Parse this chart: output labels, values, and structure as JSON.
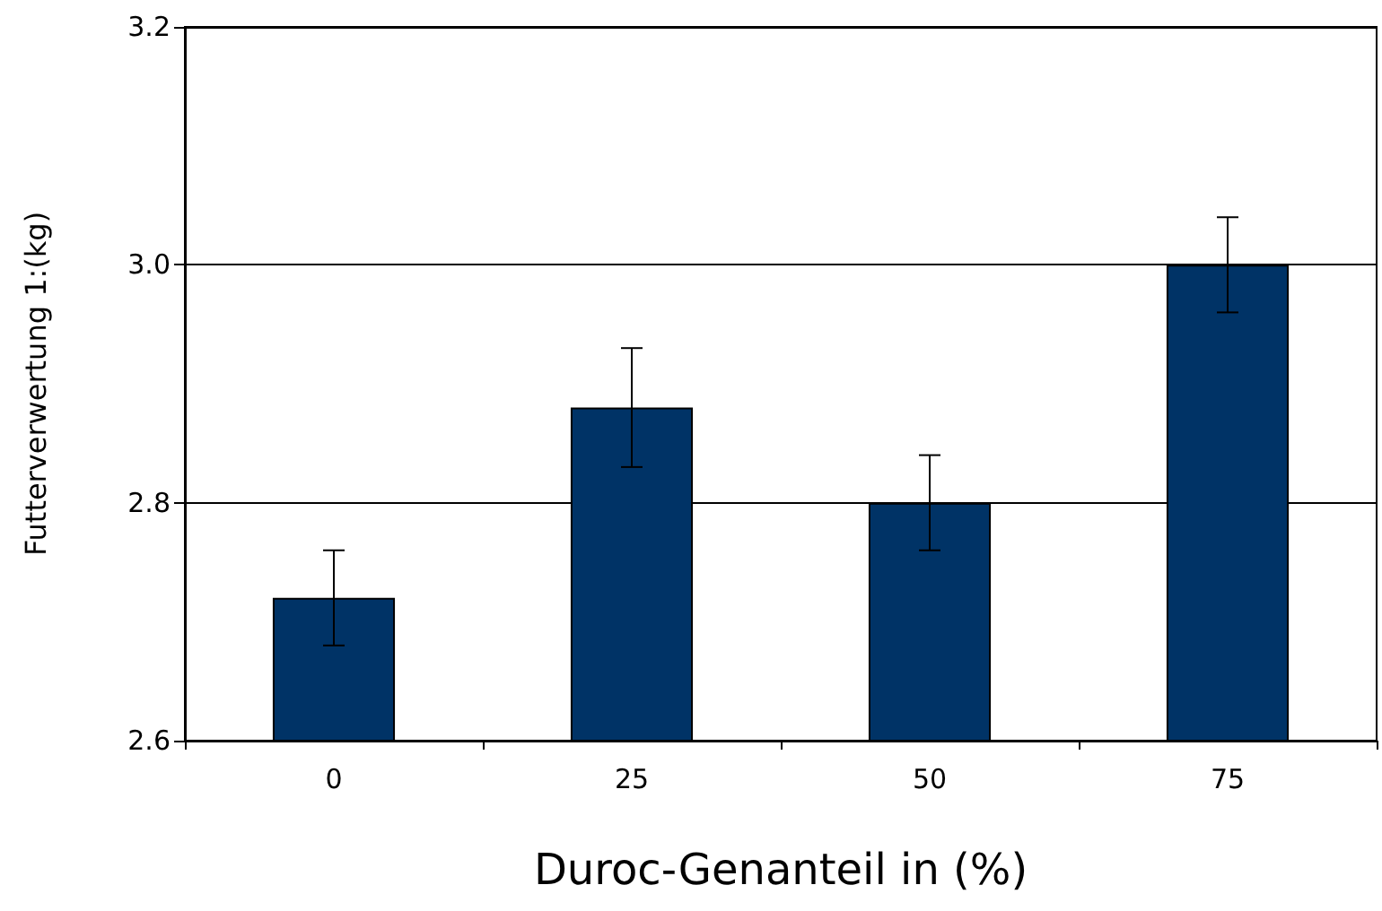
{
  "chart_data": {
    "type": "bar",
    "xlabel": "Duroc-Genanteil in (%)",
    "ylabel": "Futterverwertung 1:(kg)",
    "categories": [
      "0",
      "25",
      "50",
      "75"
    ],
    "values": [
      2.72,
      2.88,
      2.8,
      3.0
    ],
    "errors": [
      0.04,
      0.05,
      0.04,
      0.04
    ],
    "color": "#003366",
    "ylim": [
      2.6,
      3.2
    ],
    "yticks": [
      {
        "value": 2.6,
        "label": "2.6"
      },
      {
        "value": 2.8,
        "label": "2.8"
      },
      {
        "value": 3.0,
        "label": "3.0"
      },
      {
        "value": 3.2,
        "label": "3.2"
      }
    ],
    "grid": "y"
  }
}
